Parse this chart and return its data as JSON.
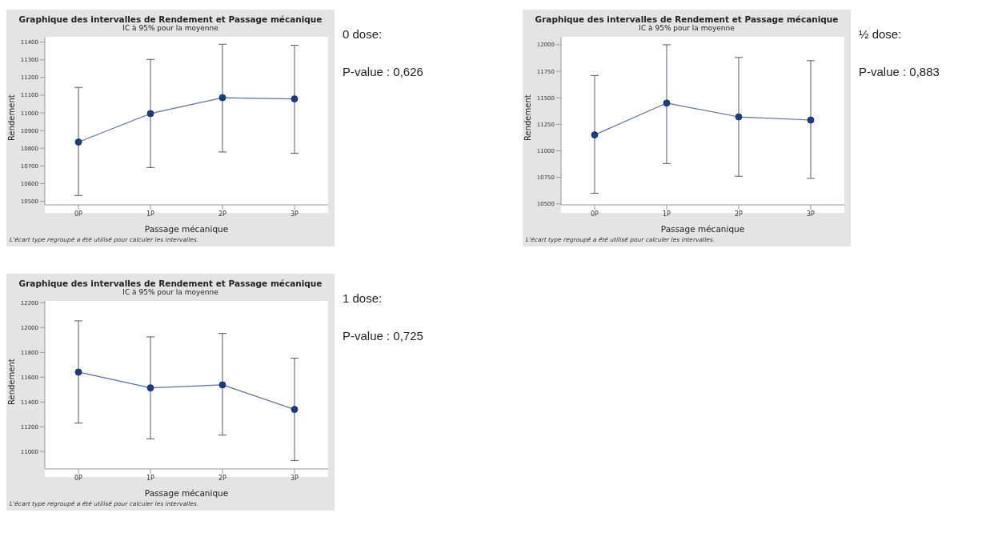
{
  "chart_data": [
    {
      "type": "line",
      "title": "Graphique des intervalles de Rendement et Passage mécanique",
      "subtitle": "IC à 95% pour la moyenne",
      "xlabel": "Passage mécanique",
      "ylabel": "Rendement",
      "categories": [
        "0P",
        "1P",
        "2P",
        "3P"
      ],
      "series": [
        {
          "color": "#5b6f9e",
          "values": [
            10835,
            10996,
            11086,
            11079
          ],
          "errors": [
            [
              10533,
              11144
            ],
            [
              10691,
              11302
            ],
            [
              10779,
              11388
            ],
            [
              10771,
              11382
            ]
          ]
        }
      ],
      "ylim": [
        10480,
        11430
      ],
      "yticks": [
        10500,
        10600,
        10700,
        10800,
        10900,
        11000,
        11100,
        11200,
        11300,
        11400
      ],
      "legend": false,
      "marker": "circle",
      "annotations": [
        "L'écart type regroupé a été utilisé pour calculer les intervalles.",
        "0 dose:",
        "P-value : 0,626"
      ]
    },
    {
      "type": "line",
      "title": "Graphique des intervalles de Rendement et Passage mécanique",
      "subtitle": "IC à 95% pour la moyenne",
      "xlabel": "Passage mécanique",
      "ylabel": "Rendement",
      "categories": [
        "0P",
        "1P",
        "2P",
        "3P"
      ],
      "series": [
        {
          "color": "#5b6f9e",
          "values": [
            11150,
            11450,
            11320,
            11290
          ],
          "errors": [
            [
              10600,
              11710
            ],
            [
              10880,
              12000
            ],
            [
              10760,
              11880
            ],
            [
              10740,
              11850
            ]
          ]
        }
      ],
      "ylim": [
        10490,
        12075
      ],
      "yticks": [
        10500,
        10750,
        11000,
        11250,
        11500,
        11750,
        12000
      ],
      "legend": false,
      "marker": "circle",
      "annotations": [
        "L'écart type regroupé a été utilisé pour calculer les intervalles.",
        "½ dose:",
        "P-value : 0,883"
      ]
    },
    {
      "type": "line",
      "title": "Graphique des intervalles de Rendement et Passage mécanique",
      "subtitle": "IC à 95% pour la moyenne",
      "xlabel": "Passage mécanique",
      "ylabel": "Rendement",
      "categories": [
        "0P",
        "1P",
        "2P",
        "3P"
      ],
      "series": [
        {
          "color": "#5b6f9e",
          "values": [
            11641,
            11514,
            11538,
            11340
          ],
          "errors": [
            [
              11230,
              12054
            ],
            [
              11103,
              11925
            ],
            [
              11133,
              11953
            ],
            [
              10927,
              11753
            ]
          ]
        }
      ],
      "ylim": [
        10860,
        12215
      ],
      "yticks": [
        11000,
        11200,
        11400,
        11600,
        11800,
        12000,
        12200
      ],
      "legend": false,
      "marker": "circle",
      "annotations": [
        "L'écart type regroupé a été utilisé pour calculer les intervalles.",
        "1 dose:",
        "P-value : 0,725"
      ]
    }
  ]
}
